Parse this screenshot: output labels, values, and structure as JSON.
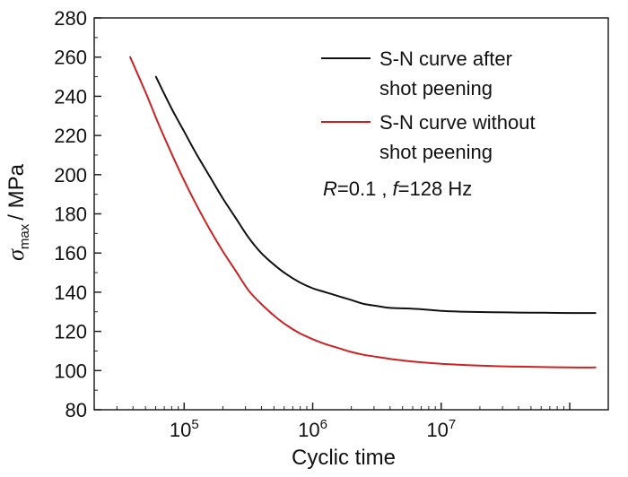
{
  "chart_data": {
    "type": "line",
    "title": "",
    "xlabel": "Cyclic time",
    "ylabel_symbol": "σ",
    "ylabel_subscript": "max",
    "ylabel_unit": "/ MPa",
    "xscale": "log",
    "xlim_log10": [
      4.3,
      8.3
    ],
    "ylim": [
      80,
      280
    ],
    "yticks": [
      80,
      100,
      120,
      140,
      160,
      180,
      200,
      220,
      240,
      260,
      280
    ],
    "xticks": [
      {
        "base": "10",
        "exp": "5",
        "log10": 5
      },
      {
        "base": "10",
        "exp": "6",
        "log10": 6
      },
      {
        "base": "10",
        "exp": "7",
        "log10": 7
      }
    ],
    "grid": false,
    "series": [
      {
        "name_line1": "S-N curve after",
        "name_line2": "shot peening",
        "color": "#111111",
        "log10_x": [
          4.78,
          4.9,
          5.0,
          5.1,
          5.2,
          5.3,
          5.4,
          5.5,
          5.6,
          5.7,
          5.8,
          5.9,
          6.0,
          6.1,
          6.2,
          6.3,
          6.4,
          6.5,
          6.6,
          6.8,
          7.0,
          7.2,
          7.4,
          7.6,
          7.8,
          8.0,
          8.2
        ],
        "y": [
          250,
          234,
          222,
          210,
          199,
          188,
          178,
          168,
          160,
          154,
          149,
          145,
          142,
          140,
          138,
          136,
          134,
          133,
          132,
          131.5,
          130.5,
          130,
          129.8,
          129.6,
          129.5,
          129.4,
          129.4
        ]
      },
      {
        "name_line1": "S-N curve without",
        "name_line2": "shot peening",
        "color": "#cc2222",
        "log10_x": [
          4.58,
          4.7,
          4.8,
          4.9,
          5.0,
          5.1,
          5.2,
          5.3,
          5.4,
          5.5,
          5.6,
          5.7,
          5.8,
          5.9,
          6.0,
          6.1,
          6.2,
          6.3,
          6.4,
          6.5,
          6.6,
          6.8,
          7.0,
          7.2,
          7.4,
          7.6,
          7.8,
          8.0,
          8.2
        ],
        "y": [
          260,
          242,
          226,
          211,
          197,
          184,
          172,
          161,
          151,
          141,
          134,
          128,
          123,
          119,
          116,
          113.5,
          111.5,
          109.5,
          108,
          107,
          106,
          104.5,
          103.5,
          102.8,
          102.3,
          102,
          101.8,
          101.6,
          101.6
        ]
      }
    ],
    "annotation": {
      "r_symbol": "R",
      "r_text": "=0.1 ,",
      "f_symbol": "f",
      "f_text": "=128 Hz"
    },
    "legend_position": "top-right"
  }
}
